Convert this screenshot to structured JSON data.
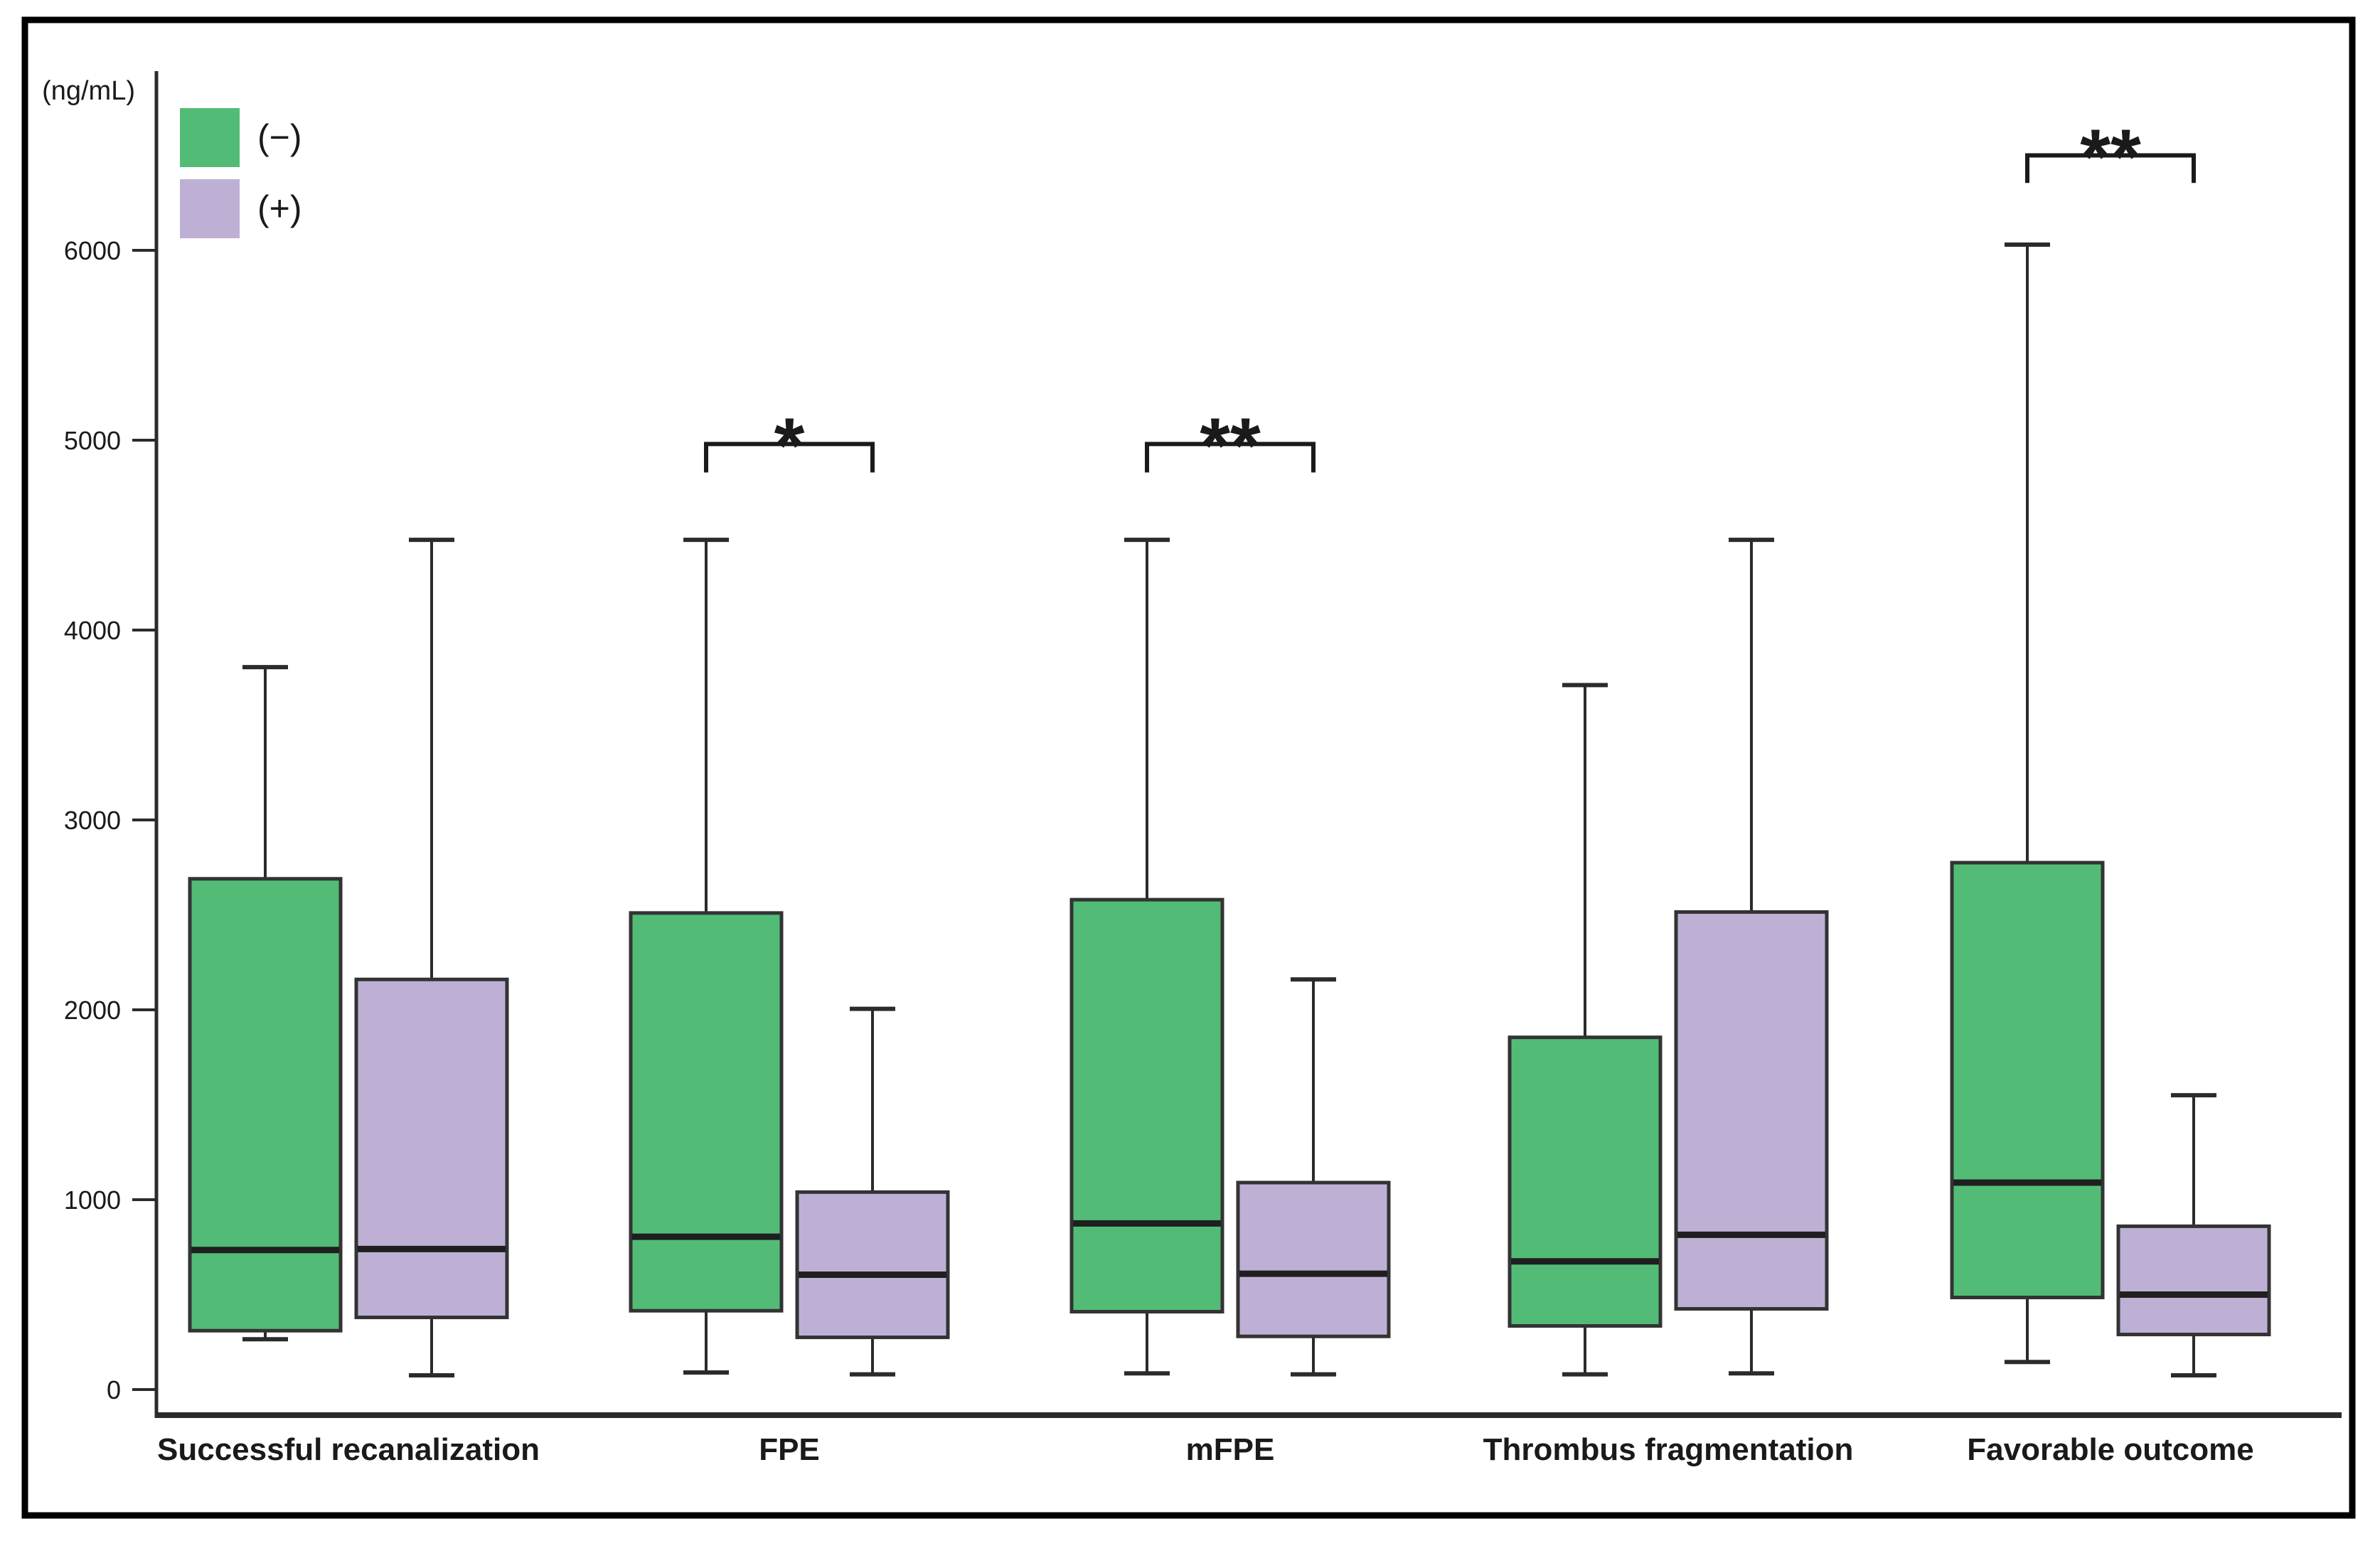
{
  "chart_data": {
    "type": "boxplot",
    "title": "",
    "unit_label": "(ng/mL)",
    "ylabel": "",
    "xlabel": "",
    "ylim": [
      0,
      7200
    ],
    "y_ticks": [
      0,
      1000,
      2000,
      3000,
      4000,
      5000,
      6000
    ],
    "y_tick_labels": [
      "0",
      "1000",
      "2000",
      "3000",
      "4000",
      "5000",
      "6000"
    ],
    "grid": "off",
    "legend_position": "top-left-inside",
    "categories": [
      "Successful recanalization",
      "FPE",
      "mFPE",
      "Thrombus fragmentation",
      "Favorable outcome"
    ],
    "legend": [
      {
        "label": "(−)",
        "color": "#52BC76"
      },
      {
        "label": "(+)",
        "color": "#BEB0D5"
      }
    ],
    "series": [
      {
        "name": "(−)",
        "color": "#52BC76",
        "boxes": [
          {
            "category": "Successful recanalization",
            "min": 265,
            "q1": 310,
            "median": 735,
            "q3": 2690,
            "max": 3805
          },
          {
            "category": "FPE",
            "min": 90,
            "q1": 415,
            "median": 805,
            "q3": 2510,
            "max": 4475
          },
          {
            "category": "mFPE",
            "min": 85,
            "q1": 410,
            "median": 875,
            "q3": 2580,
            "max": 4475
          },
          {
            "category": "Thrombus fragmentation",
            "min": 80,
            "q1": 335,
            "median": 675,
            "q3": 1855,
            "max": 3710
          },
          {
            "category": "Favorable outcome",
            "min": 145,
            "q1": 485,
            "median": 1090,
            "q3": 2775,
            "max": 6030
          }
        ]
      },
      {
        "name": "(+)",
        "color": "#BEB0D5",
        "boxes": [
          {
            "category": "Successful recanalization",
            "min": 75,
            "q1": 380,
            "median": 740,
            "q3": 2160,
            "max": 4475
          },
          {
            "category": "FPE",
            "min": 80,
            "q1": 275,
            "median": 605,
            "q3": 1040,
            "max": 2005
          },
          {
            "category": "mFPE",
            "min": 80,
            "q1": 280,
            "median": 610,
            "q3": 1090,
            "max": 2160
          },
          {
            "category": "Thrombus fragmentation",
            "min": 85,
            "q1": 425,
            "median": 815,
            "q3": 2515,
            "max": 4475
          },
          {
            "category": "Favorable outcome",
            "min": 75,
            "q1": 290,
            "median": 500,
            "q3": 860,
            "max": 1550
          }
        ]
      }
    ],
    "significance": [
      {
        "category": "FPE",
        "label": "*",
        "bar_value": 4980,
        "leg_value": 4830
      },
      {
        "category": "mFPE",
        "label": "**",
        "bar_value": 4980,
        "leg_value": 4830
      },
      {
        "category": "Favorable outcome",
        "label": "**",
        "bar_value": 6500,
        "leg_value": 6355
      }
    ],
    "colors": {
      "box_stroke": "#333333",
      "median": "#1f1f1f",
      "whisker": "#2b2b2b",
      "axis": "#2b2b2b",
      "text": "#1a1a1a",
      "frame": "#000000",
      "background": "#ffffff"
    }
  }
}
